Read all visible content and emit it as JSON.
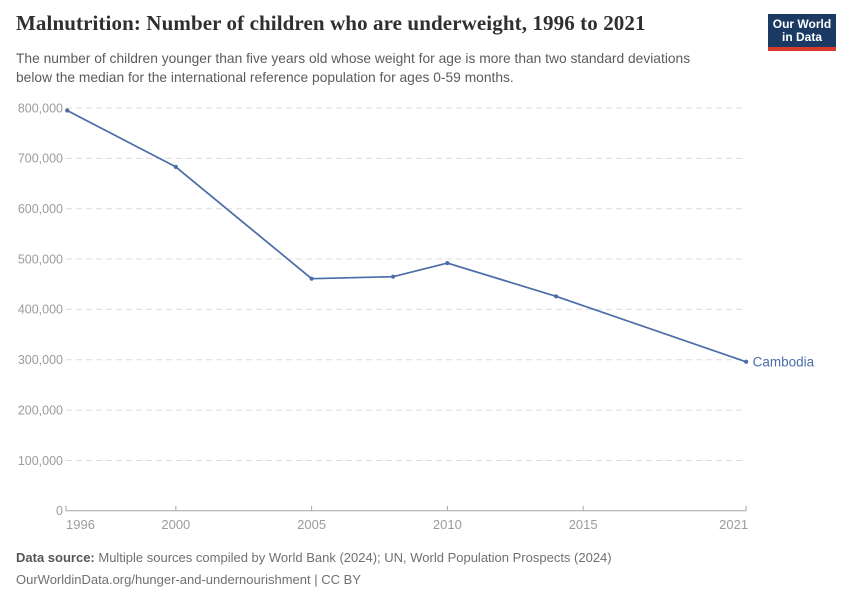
{
  "header": {
    "title": "Malnutrition: Number of children who are underweight, 1996 to 2021",
    "subtitle_line1": "The number of children younger than five years old whose weight for age is more than two standard deviations",
    "subtitle_line2": "below the median for the international reference population for ages 0-59 months."
  },
  "logo": {
    "line1": "Our World",
    "line2": "in Data",
    "bg_color": "#1a3a63",
    "stripe_color": "#d93a2b"
  },
  "chart_data": {
    "type": "line",
    "title": "Malnutrition: Number of children who are underweight, 1996 to 2021",
    "xlabel": "",
    "ylabel": "",
    "xlim": [
      1996,
      2021
    ],
    "ylim": [
      0,
      800000
    ],
    "x_ticks": [
      1996,
      2000,
      2005,
      2010,
      2015,
      2021
    ],
    "y_ticks": [
      0,
      100000,
      200000,
      300000,
      400000,
      500000,
      600000,
      700000,
      800000
    ],
    "y_tick_labels": [
      "0",
      "100,000",
      "200,000",
      "300,000",
      "400,000",
      "500,000",
      "600,000",
      "700,000",
      "800,000"
    ],
    "grid": "horizontal-dashed",
    "legend_position": "end-of-line",
    "series": [
      {
        "name": "Cambodia",
        "x": [
          1996,
          2000,
          2005,
          2008,
          2010,
          2014,
          2021
        ],
        "values": [
          795000,
          683000,
          461000,
          465000,
          492000,
          426000,
          296000
        ],
        "color": "#4a6da7"
      }
    ],
    "entity_label": "Cambodia"
  },
  "footer": {
    "source_label": "Data source:",
    "source_text": " Multiple sources compiled by World Bank (2024); UN, World Population Prospects (2024)",
    "license_text": "OurWorldinData.org/hunger-and-undernourishment | CC BY"
  },
  "colors": {
    "line": "#4a6da7",
    "grid": "#dcdcdc",
    "axis_line": "#a8a8a8",
    "tick_text": "#9c9c9c",
    "title": "#2f2f2f",
    "subtitle": "#5c5c5c",
    "footer": "#707070"
  }
}
